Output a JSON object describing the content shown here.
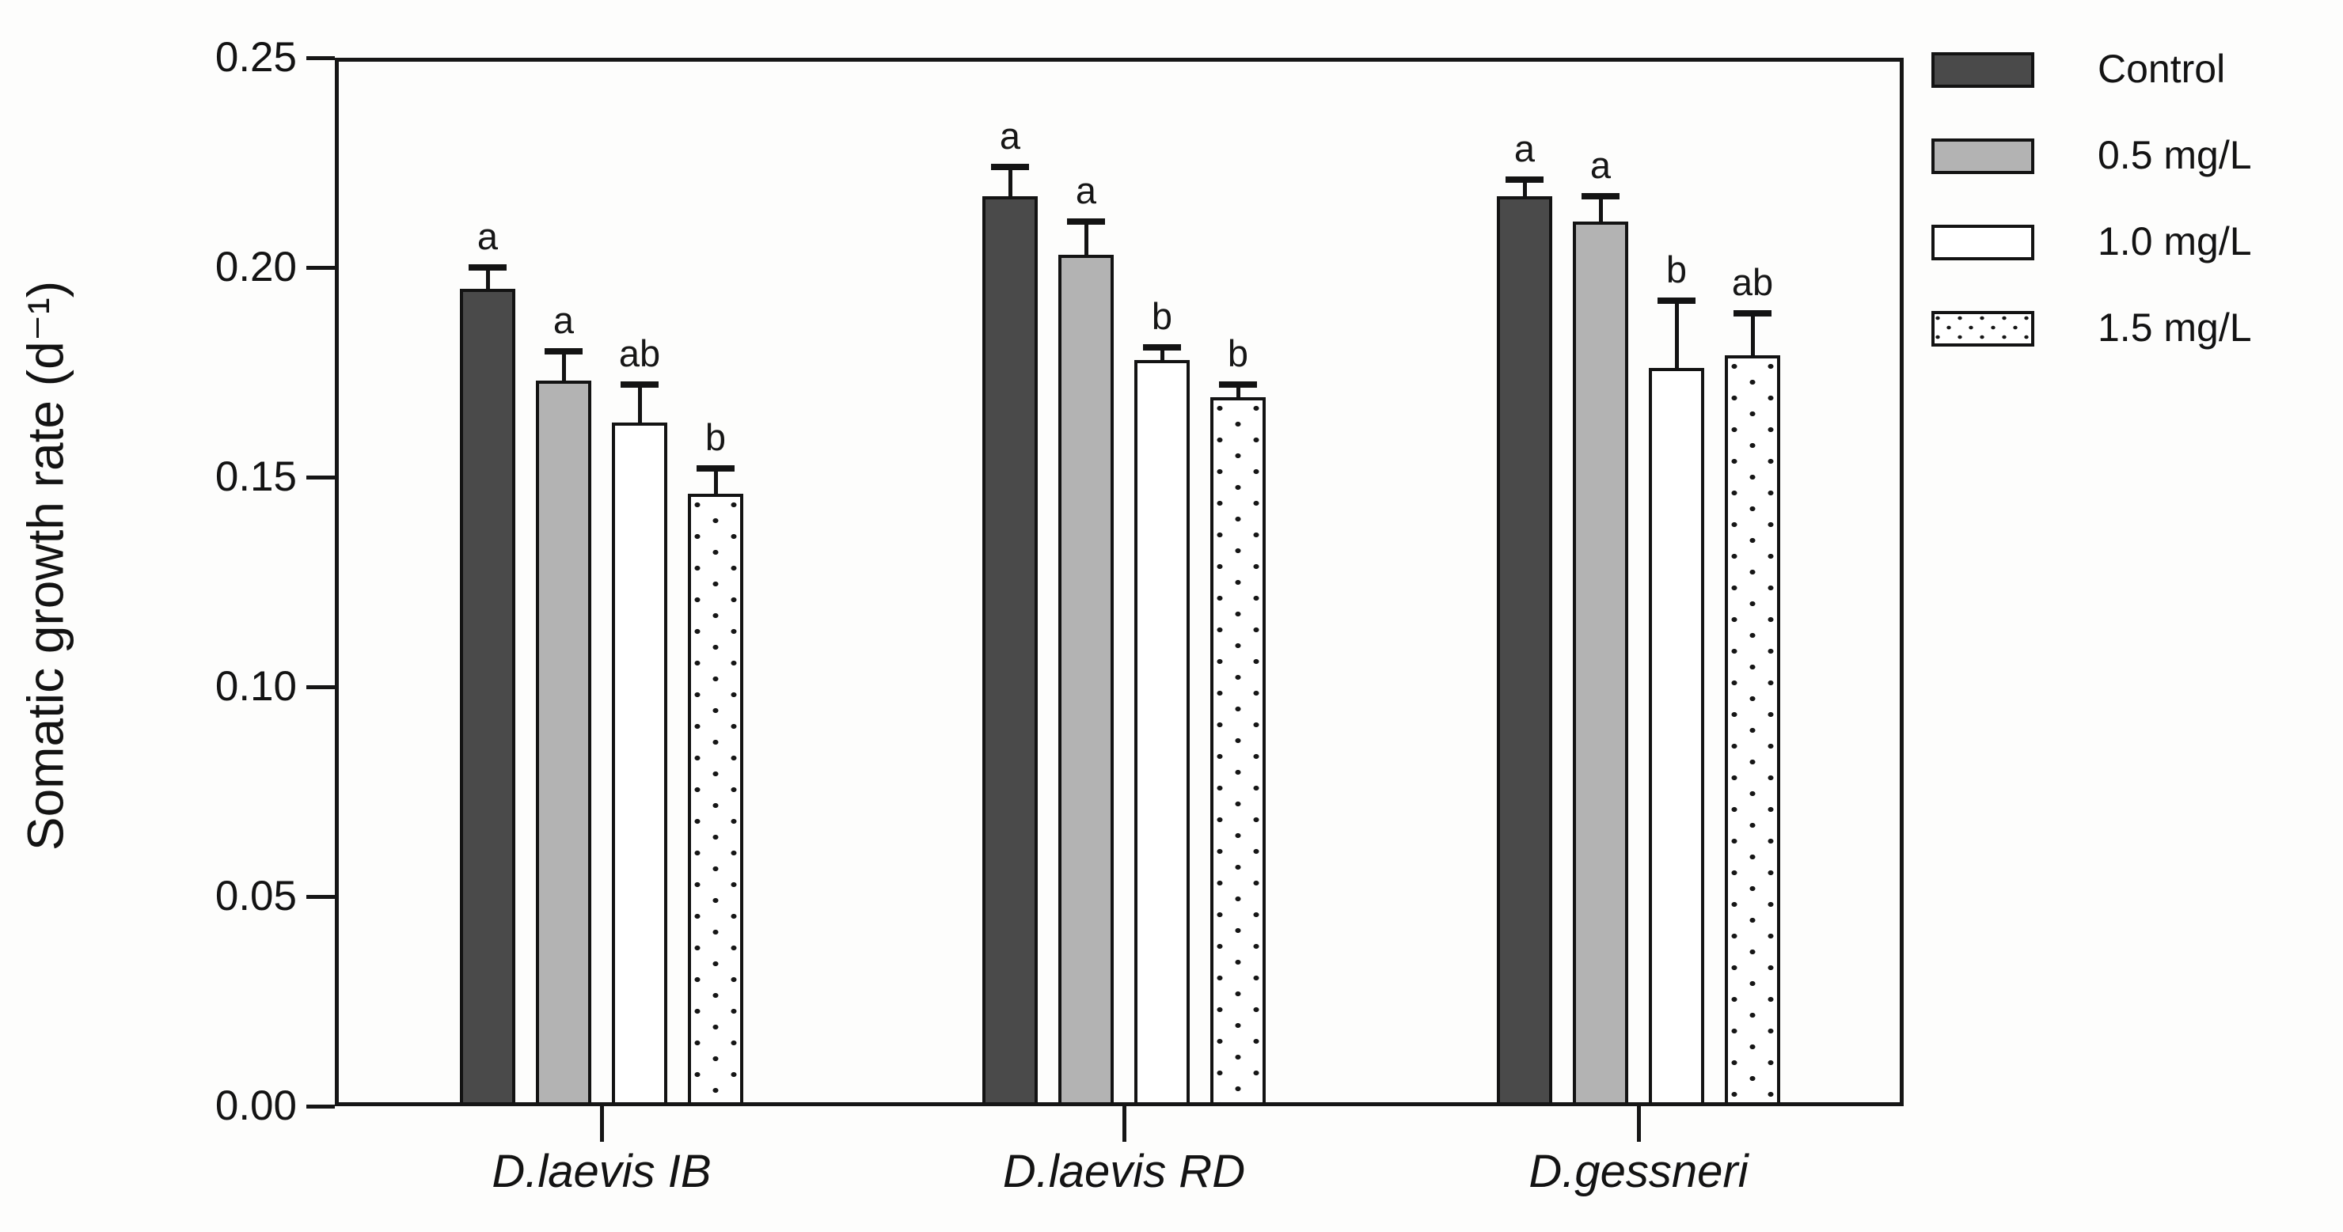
{
  "figure": {
    "background": "#fdfdfc",
    "frame_color": "#161616"
  },
  "chart_data": {
    "type": "bar",
    "title": "",
    "xlabel": "",
    "ylabel": "Somatic growth rate (d⁻¹)",
    "categories": [
      "D.laevis IB",
      "D.laevis RD",
      "D.gessneri"
    ],
    "series": [
      {
        "name": "Control",
        "fill": "#4a4a4a",
        "pattern": "solid",
        "values": [
          0.195,
          0.217,
          0.217
        ],
        "errors": [
          0.005,
          0.007,
          0.004
        ],
        "sig_letters": [
          "a",
          "a",
          "a"
        ]
      },
      {
        "name": "0.5 mg/L",
        "fill": "#b3b3b3",
        "pattern": "solid",
        "values": [
          0.173,
          0.203,
          0.211
        ],
        "errors": [
          0.007,
          0.008,
          0.006
        ],
        "sig_letters": [
          "a",
          "a",
          "a"
        ]
      },
      {
        "name": "1.0 mg/L",
        "fill": "#ffffff",
        "pattern": "solid",
        "values": [
          0.163,
          0.178,
          0.176
        ],
        "errors": [
          0.009,
          0.003,
          0.016
        ],
        "sig_letters": [
          "ab",
          "b",
          "b"
        ]
      },
      {
        "name": "1.5 mg/L",
        "fill": "#ffffff",
        "pattern": "dotted",
        "values": [
          0.146,
          0.169,
          0.179
        ],
        "errors": [
          0.006,
          0.003,
          0.01
        ],
        "sig_letters": [
          "b",
          "b",
          "ab"
        ]
      }
    ],
    "ylim": [
      0.0,
      0.25
    ],
    "ytick_step": 0.05,
    "yticks": [
      "0.00",
      "0.05",
      "0.10",
      "0.15",
      "0.20",
      "0.25"
    ],
    "grid": false,
    "error_bars": "upper, capped",
    "legend_position": "outside-top-right",
    "annotations": "letters a/ab/b above error bars denote significance groups"
  },
  "legend": {
    "items": [
      {
        "label": "Control"
      },
      {
        "label": "0.5 mg/L"
      },
      {
        "label": "1.0 mg/L"
      },
      {
        "label": "1.5 mg/L"
      }
    ]
  }
}
